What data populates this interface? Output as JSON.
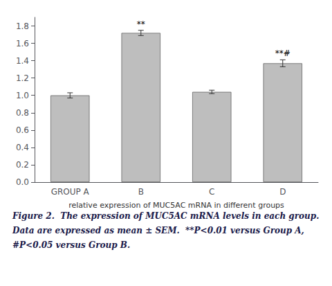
{
  "chart_data": {
    "type": "bar",
    "categories": [
      "GROUP A",
      "B",
      "C",
      "D"
    ],
    "values": [
      1.0,
      1.72,
      1.04,
      1.37
    ],
    "errors": [
      0.03,
      0.03,
      0.02,
      0.04
    ],
    "color": "#bebebe",
    "xlabel": "relative expression of MUC5AC mRNA in different groups",
    "ylim": [
      0.0,
      1.9
    ],
    "yticks": [
      {
        "value": 0.0,
        "label": "0.0"
      },
      0.2,
      0.4,
      0.6,
      0.8,
      {
        "value": 1.0,
        "label": "1.0"
      },
      1.2,
      1.4,
      1.6,
      1.8
    ],
    "grid": false,
    "annotations": [
      {
        "text": "**",
        "category": "B"
      },
      {
        "text": "**#",
        "category": "D"
      }
    ],
    "caption": [
      "Figure 2.  The expression of MUC5AC mRNA levels in each group.",
      "Data are expressed as mean ± SEM.  **P<0.01 versus Group A,",
      "#P<0.05 versus Group B."
    ]
  }
}
